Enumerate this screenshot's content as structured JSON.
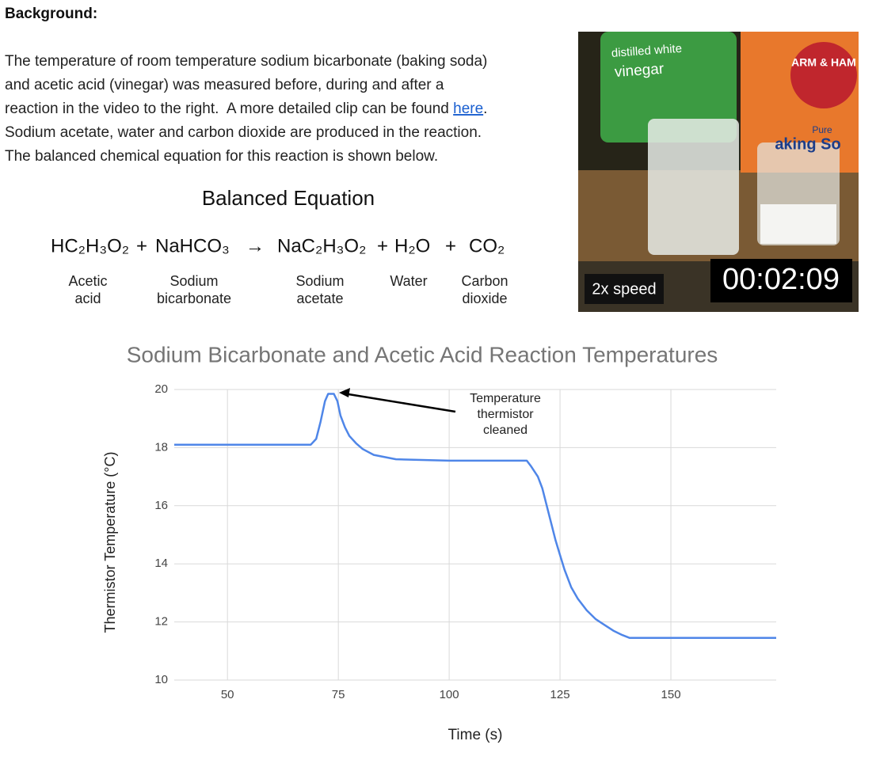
{
  "heading": "Background:",
  "paragraph": {
    "lines": [
      "The temperature of room temperature sodium bicarbonate (baking soda)",
      "and acetic acid (vinegar) was measured before, during and after a",
      "reaction in the video to the right.  A more detailed clip can be found ",
      "Sodium acetate, water and carbon dioxide are produced in the reaction.",
      "The balanced chemical equation for this reaction is shown below."
    ],
    "link": "here",
    "link_after": "."
  },
  "equation": {
    "title": "Balanced Equation",
    "parts": [
      "HC₂H₃O₂",
      "+",
      "NaHCO₃",
      "→",
      "NaC₂H₃O₂",
      "+",
      "H₂O",
      "+",
      "CO₂"
    ],
    "labels": [
      [
        "Acetic",
        "acid"
      ],
      [
        "Sodium",
        "bicarbonate"
      ],
      [
        "Sodium",
        "acetate"
      ],
      [
        "Water"
      ],
      [
        "Carbon",
        "dioxide"
      ]
    ]
  },
  "video": {
    "speed": "2x speed",
    "timestamp": "00:02:09",
    "bottle_label": [
      "distilled white",
      "vinegar"
    ],
    "box_brand": "ARM & HAM",
    "box_label": [
      "Pure",
      "aking So"
    ]
  },
  "chart_data": {
    "type": "line",
    "title": "Sodium Bicarbonate and Acetic Acid Reaction Temperatures",
    "x_label": "Time (s)",
    "y_label": "Thermistor Temperature (°C)",
    "color": "#4f86e8",
    "grid": true,
    "xlim": [
      38,
      173.75
    ],
    "ylim": [
      10,
      20
    ],
    "xticks": [
      50,
      75,
      100,
      125,
      150
    ],
    "yticks": [
      10,
      12,
      14,
      16,
      18,
      20
    ],
    "x": [
      38,
      68.8,
      70,
      71,
      72,
      72.7,
      74,
      74.8,
      75.5,
      76.5,
      77.5,
      79,
      80.5,
      83,
      88,
      100,
      117.5,
      118.5,
      120,
      121,
      122,
      123,
      124,
      125,
      126,
      127.5,
      129,
      131,
      133,
      135,
      137,
      139,
      140.7,
      150,
      173.75
    ],
    "values": [
      18.1,
      18.1,
      18.3,
      18.9,
      19.6,
      19.85,
      19.85,
      19.6,
      19.1,
      18.7,
      18.4,
      18.15,
      17.95,
      17.75,
      17.6,
      17.55,
      17.55,
      17.35,
      17.0,
      16.6,
      16.0,
      15.4,
      14.8,
      14.3,
      13.8,
      13.2,
      12.8,
      12.4,
      12.1,
      11.9,
      11.7,
      11.55,
      11.45,
      11.45,
      11.45
    ],
    "annotation": [
      "Temperature",
      "thermistor",
      "cleaned"
    ]
  }
}
